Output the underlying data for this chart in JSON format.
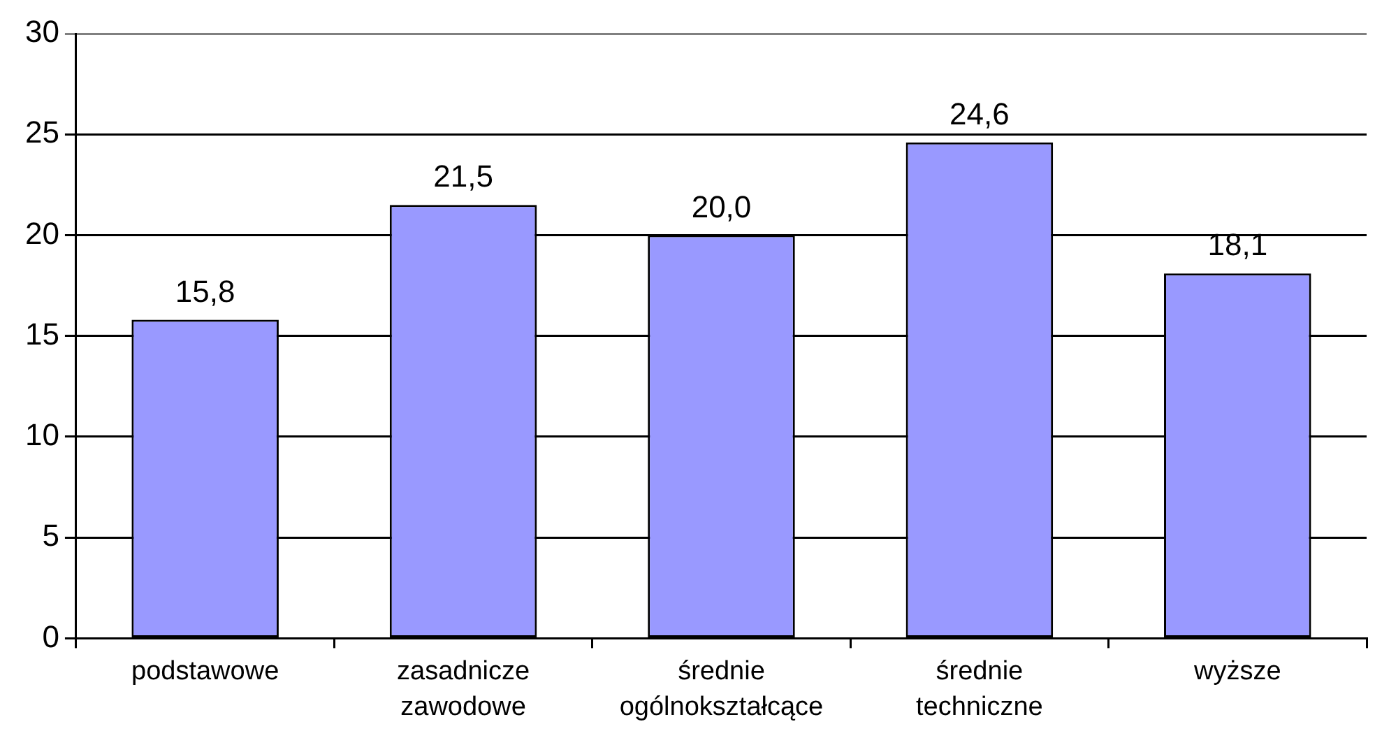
{
  "chart_data": {
    "type": "bar",
    "categories": [
      "podstawowe",
      "zasadnicze zawodowe",
      "średnie ogólnokształcące",
      "średnie techniczne",
      "wyższe"
    ],
    "values": [
      15.8,
      21.5,
      20.0,
      24.6,
      18.1
    ],
    "color": "#9999ff",
    "value_labels": [
      "15,8",
      "21,5",
      "20,0",
      "24,6",
      "18,1"
    ],
    "ylim": [
      0,
      30
    ],
    "yticks": [
      0,
      5,
      10,
      15,
      20,
      25,
      30
    ],
    "grid": "y",
    "legend": false
  }
}
